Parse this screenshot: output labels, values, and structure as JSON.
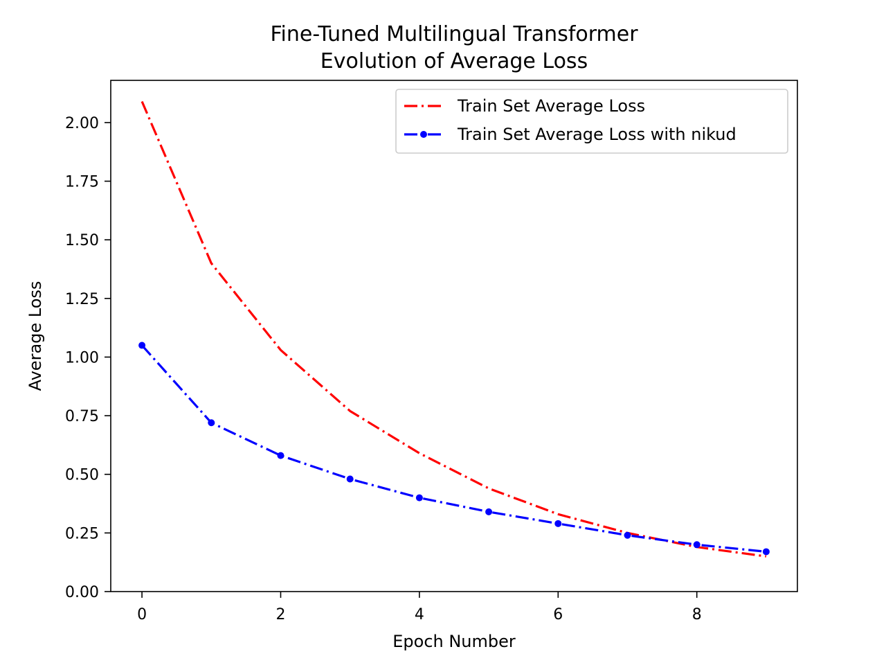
{
  "chart_data": {
    "type": "line",
    "title": [
      "Fine-Tuned Multilingual Transformer",
      "Evolution of Average Loss"
    ],
    "xlabel": "Epoch Number",
    "ylabel": "Average Loss",
    "xlim": [
      -0.45,
      9.45
    ],
    "ylim": [
      0,
      2.18
    ],
    "xticks": [
      0,
      2,
      4,
      6,
      8
    ],
    "xtick_labels": [
      "0",
      "2",
      "4",
      "6",
      "8"
    ],
    "yticks": [
      0,
      0.25,
      0.5,
      0.75,
      1.0,
      1.25,
      1.5,
      1.75,
      2.0
    ],
    "ytick_labels": [
      "0.00",
      "0.25",
      "0.50",
      "0.75",
      "1.00",
      "1.25",
      "1.50",
      "1.75",
      "2.00"
    ],
    "grid": false,
    "legend": "upper right",
    "x": [
      0,
      1,
      2,
      3,
      4,
      5,
      6,
      7,
      8,
      9
    ],
    "series": [
      {
        "name": "Train Set Average Loss",
        "color": "#ff0000",
        "linestyle": "dash-dot",
        "marker": "none",
        "values": [
          2.09,
          1.4,
          1.03,
          0.77,
          0.59,
          0.44,
          0.33,
          0.25,
          0.19,
          0.15
        ]
      },
      {
        "name": "Train Set Average Loss with nikud",
        "color": "#0000ff",
        "linestyle": "dash-dot",
        "marker": "dot",
        "values": [
          1.05,
          0.72,
          0.58,
          0.48,
          0.4,
          0.34,
          0.29,
          0.24,
          0.2,
          0.17
        ]
      }
    ]
  }
}
